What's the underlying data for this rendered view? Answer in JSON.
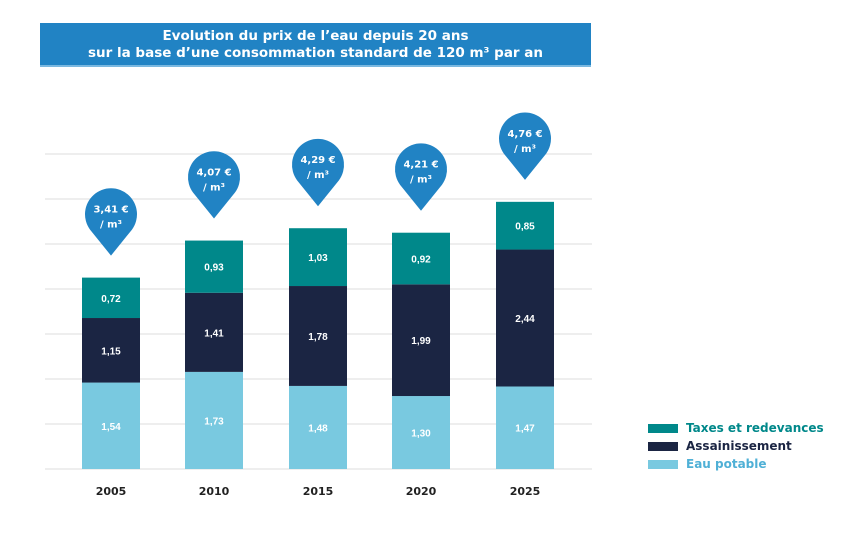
{
  "title": [
    "Evolution du prix de l’eau depuis 20 ans",
    "sur la base d’une consommation standard de 120 m³ par an"
  ],
  "chart_data": {
    "type": "bar",
    "stacked": true,
    "categories": [
      "2005",
      "2010",
      "2015",
      "2020",
      "2025"
    ],
    "series": [
      {
        "name": "Eau potable",
        "color": "#79c9e0",
        "values": [
          1.54,
          1.73,
          1.48,
          1.3,
          1.47
        ],
        "labels": [
          "1,54",
          "1,73",
          "1,48",
          "1,30",
          "1,47"
        ]
      },
      {
        "name": "Assainissement",
        "color": "#1b2543",
        "values": [
          1.15,
          1.41,
          1.78,
          1.99,
          2.44
        ],
        "labels": [
          "1,15",
          "1,41",
          "1,78",
          "1,99",
          "2,44"
        ]
      },
      {
        "name": "Taxes et redevances",
        "color": "#00888a",
        "values": [
          0.72,
          0.93,
          1.03,
          0.92,
          0.85
        ],
        "labels": [
          "0,72",
          "0,93",
          "1,03",
          "0,92",
          "0,85"
        ]
      }
    ],
    "totals": [
      "3,41 €",
      "4,07 €",
      "4,29 €",
      "4,21 €",
      "4,76 €"
    ],
    "total_unit": "/ m³",
    "total_values": [
      3.41,
      4.07,
      4.29,
      4.21,
      4.76
    ],
    "pin_color": "#2183c4",
    "grid": true,
    "legend_position": "right",
    "ylim": [
      0,
      5.5
    ]
  }
}
